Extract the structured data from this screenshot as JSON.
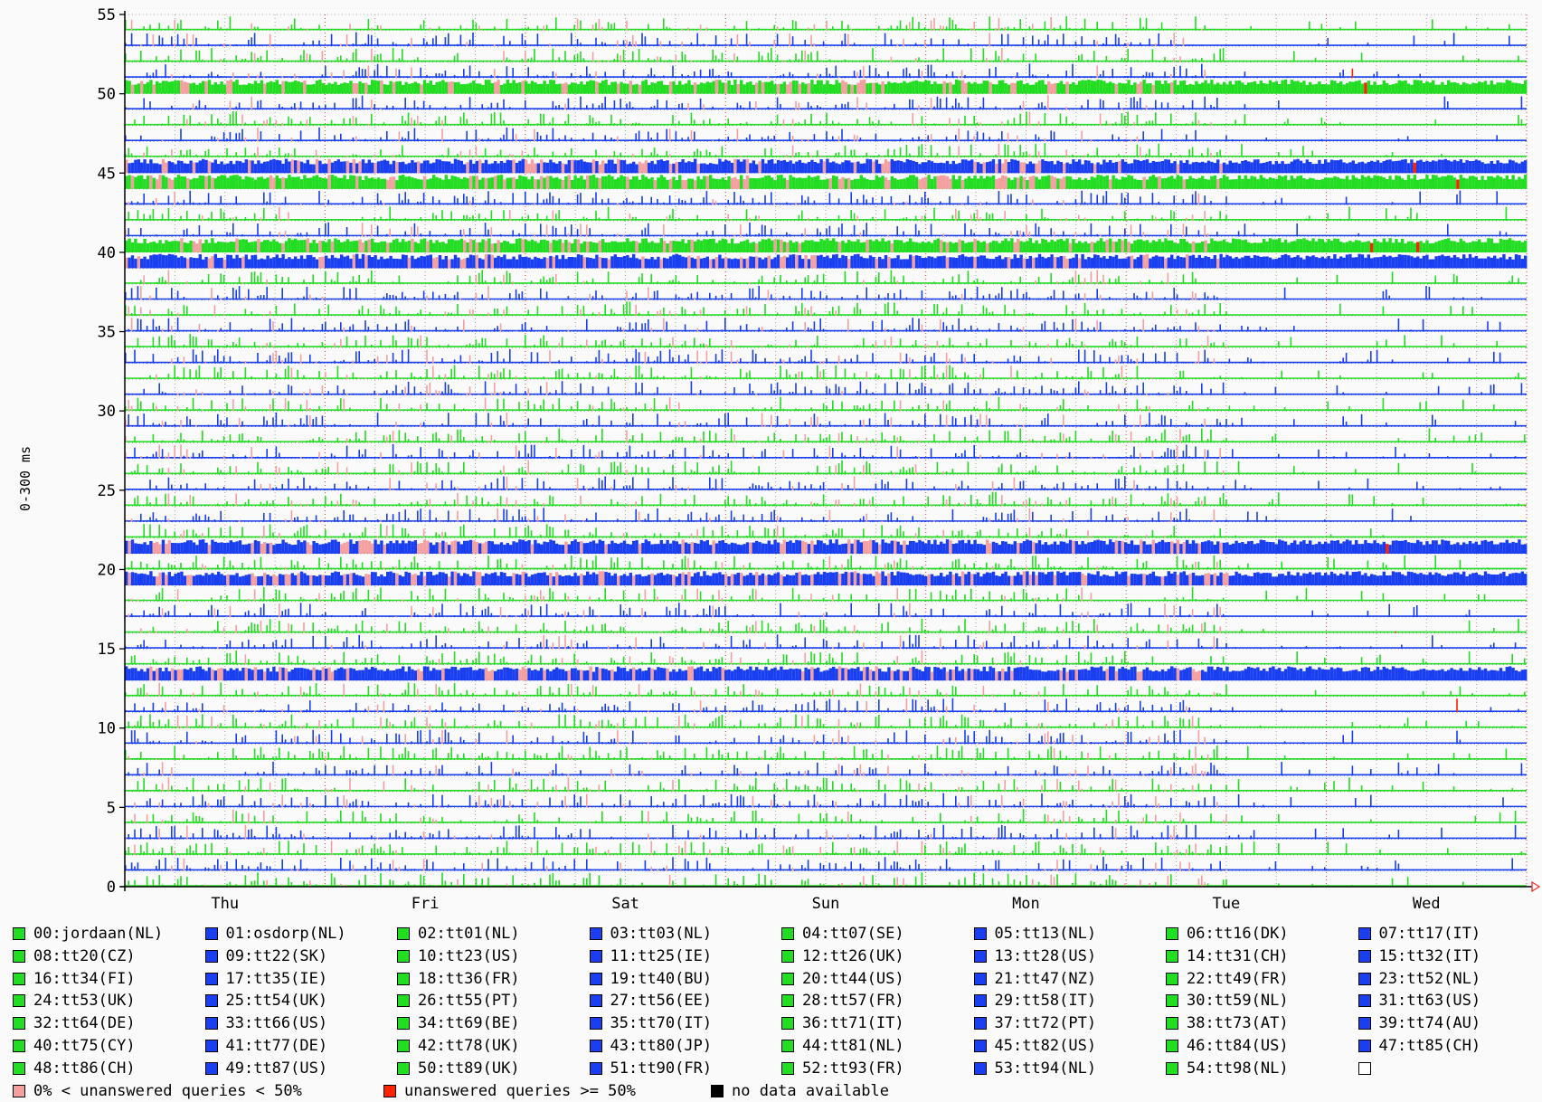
{
  "chart_data": {
    "type": "bar",
    "ylabel": "0-300 ms",
    "y_ticks": [
      0,
      5,
      10,
      15,
      20,
      25,
      30,
      35,
      40,
      45,
      50,
      55
    ],
    "ylim": [
      0,
      55
    ],
    "x_labels": [
      "Thu",
      "Fri",
      "Sat",
      "Sun",
      "Mon",
      "Tue",
      "Wed"
    ],
    "grid": true,
    "legend_position": "bottom",
    "colors": {
      "green": "#22dd22",
      "blue": "#1a3ff0",
      "unanswered_lt_50": "#f4a0a0",
      "unanswered_ge_50": "#ff2200",
      "no_data": "#000000"
    },
    "series": [
      {
        "name": "00:jordaan(NL)",
        "color": "green"
      },
      {
        "name": "01:osdorp(NL)",
        "color": "blue"
      },
      {
        "name": "02:tt01(NL)",
        "color": "green"
      },
      {
        "name": "03:tt03(NL)",
        "color": "blue"
      },
      {
        "name": "04:tt07(SE)",
        "color": "green"
      },
      {
        "name": "05:tt13(NL)",
        "color": "blue"
      },
      {
        "name": "06:tt16(DK)",
        "color": "green"
      },
      {
        "name": "07:tt17(IT)",
        "color": "blue"
      },
      {
        "name": "08:tt20(CZ)",
        "color": "green"
      },
      {
        "name": "09:tt22(SK)",
        "color": "blue"
      },
      {
        "name": "10:tt23(US)",
        "color": "green"
      },
      {
        "name": "11:tt25(IE)",
        "color": "blue"
      },
      {
        "name": "12:tt26(UK)",
        "color": "green"
      },
      {
        "name": "13:tt28(US)",
        "color": "blue"
      },
      {
        "name": "14:tt31(CH)",
        "color": "green"
      },
      {
        "name": "15:tt32(IT)",
        "color": "blue"
      },
      {
        "name": "16:tt34(FI)",
        "color": "green"
      },
      {
        "name": "17:tt35(IE)",
        "color": "blue"
      },
      {
        "name": "18:tt36(FR)",
        "color": "green"
      },
      {
        "name": "19:tt40(BU)",
        "color": "blue"
      },
      {
        "name": "20:tt44(US)",
        "color": "green"
      },
      {
        "name": "21:tt47(NZ)",
        "color": "blue"
      },
      {
        "name": "22:tt49(FR)",
        "color": "green"
      },
      {
        "name": "23:tt52(NL)",
        "color": "blue"
      },
      {
        "name": "24:tt53(UK)",
        "color": "green"
      },
      {
        "name": "25:tt54(UK)",
        "color": "blue"
      },
      {
        "name": "26:tt55(PT)",
        "color": "green"
      },
      {
        "name": "27:tt56(EE)",
        "color": "blue"
      },
      {
        "name": "28:tt57(FR)",
        "color": "green"
      },
      {
        "name": "29:tt58(IT)",
        "color": "blue"
      },
      {
        "name": "30:tt59(NL)",
        "color": "green"
      },
      {
        "name": "31:tt63(US)",
        "color": "blue"
      },
      {
        "name": "32:tt64(DE)",
        "color": "green"
      },
      {
        "name": "33:tt66(US)",
        "color": "blue"
      },
      {
        "name": "34:tt69(BE)",
        "color": "green"
      },
      {
        "name": "35:tt70(IT)",
        "color": "blue"
      },
      {
        "name": "36:tt71(IT)",
        "color": "green"
      },
      {
        "name": "37:tt72(PT)",
        "color": "blue"
      },
      {
        "name": "38:tt73(AT)",
        "color": "green"
      },
      {
        "name": "39:tt74(AU)",
        "color": "blue"
      },
      {
        "name": "40:tt75(CY)",
        "color": "green"
      },
      {
        "name": "41:tt77(DE)",
        "color": "blue"
      },
      {
        "name": "42:tt78(UK)",
        "color": "green"
      },
      {
        "name": "43:tt80(JP)",
        "color": "blue"
      },
      {
        "name": "44:tt81(NL)",
        "color": "green"
      },
      {
        "name": "45:tt82(US)",
        "color": "blue"
      },
      {
        "name": "46:tt84(US)",
        "color": "green"
      },
      {
        "name": "47:tt85(CH)",
        "color": "blue"
      },
      {
        "name": "48:tt86(CH)",
        "color": "green"
      },
      {
        "name": "49:tt87(US)",
        "color": "blue"
      },
      {
        "name": "50:tt89(UK)",
        "color": "green"
      },
      {
        "name": "51:tt90(FR)",
        "color": "blue"
      },
      {
        "name": "52:tt93(FR)",
        "color": "green"
      },
      {
        "name": "53:tt94(NL)",
        "color": "blue"
      },
      {
        "name": "54:tt98(NL)",
        "color": "green"
      }
    ],
    "status_legend": [
      {
        "label": "0% < unanswered queries < 50%",
        "color": "unanswered_lt_50"
      },
      {
        "label": "unanswered queries >= 50%",
        "color": "unanswered_ge_50"
      },
      {
        "label": "no data available",
        "color": "no_data"
      }
    ]
  }
}
